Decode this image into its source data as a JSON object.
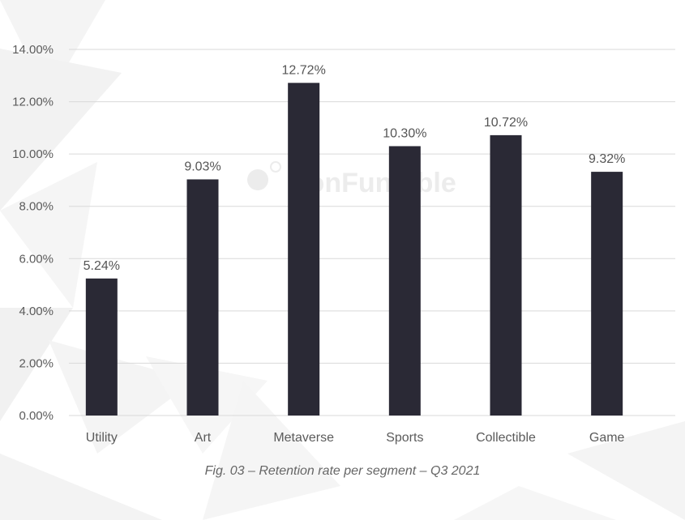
{
  "watermark": "NonFungible",
  "caption": "Fig. 03 – Retention rate per segment – Q3 2021",
  "colors": {
    "bar": "#2a2935",
    "grid": "#d9d9d9",
    "text": "#5b5b5b"
  },
  "chart_data": {
    "type": "bar",
    "title": "",
    "xlabel": "",
    "ylabel": "",
    "categories": [
      "Utility",
      "Art",
      "Metaverse",
      "Sports",
      "Collectible",
      "Game"
    ],
    "values": [
      5.24,
      9.03,
      12.72,
      10.3,
      10.72,
      9.32
    ],
    "value_labels": [
      "5.24%",
      "9.03%",
      "12.72%",
      "10.30%",
      "10.72%",
      "9.32%"
    ],
    "yticks": [
      0,
      2,
      4,
      6,
      8,
      10,
      12,
      14
    ],
    "ytick_labels": [
      "0.00%",
      "2.00%",
      "4.00%",
      "6.00%",
      "8.00%",
      "10.00%",
      "12.00%",
      "14.00%"
    ],
    "ylim": [
      0,
      14
    ],
    "grid": true,
    "legend": "none"
  }
}
